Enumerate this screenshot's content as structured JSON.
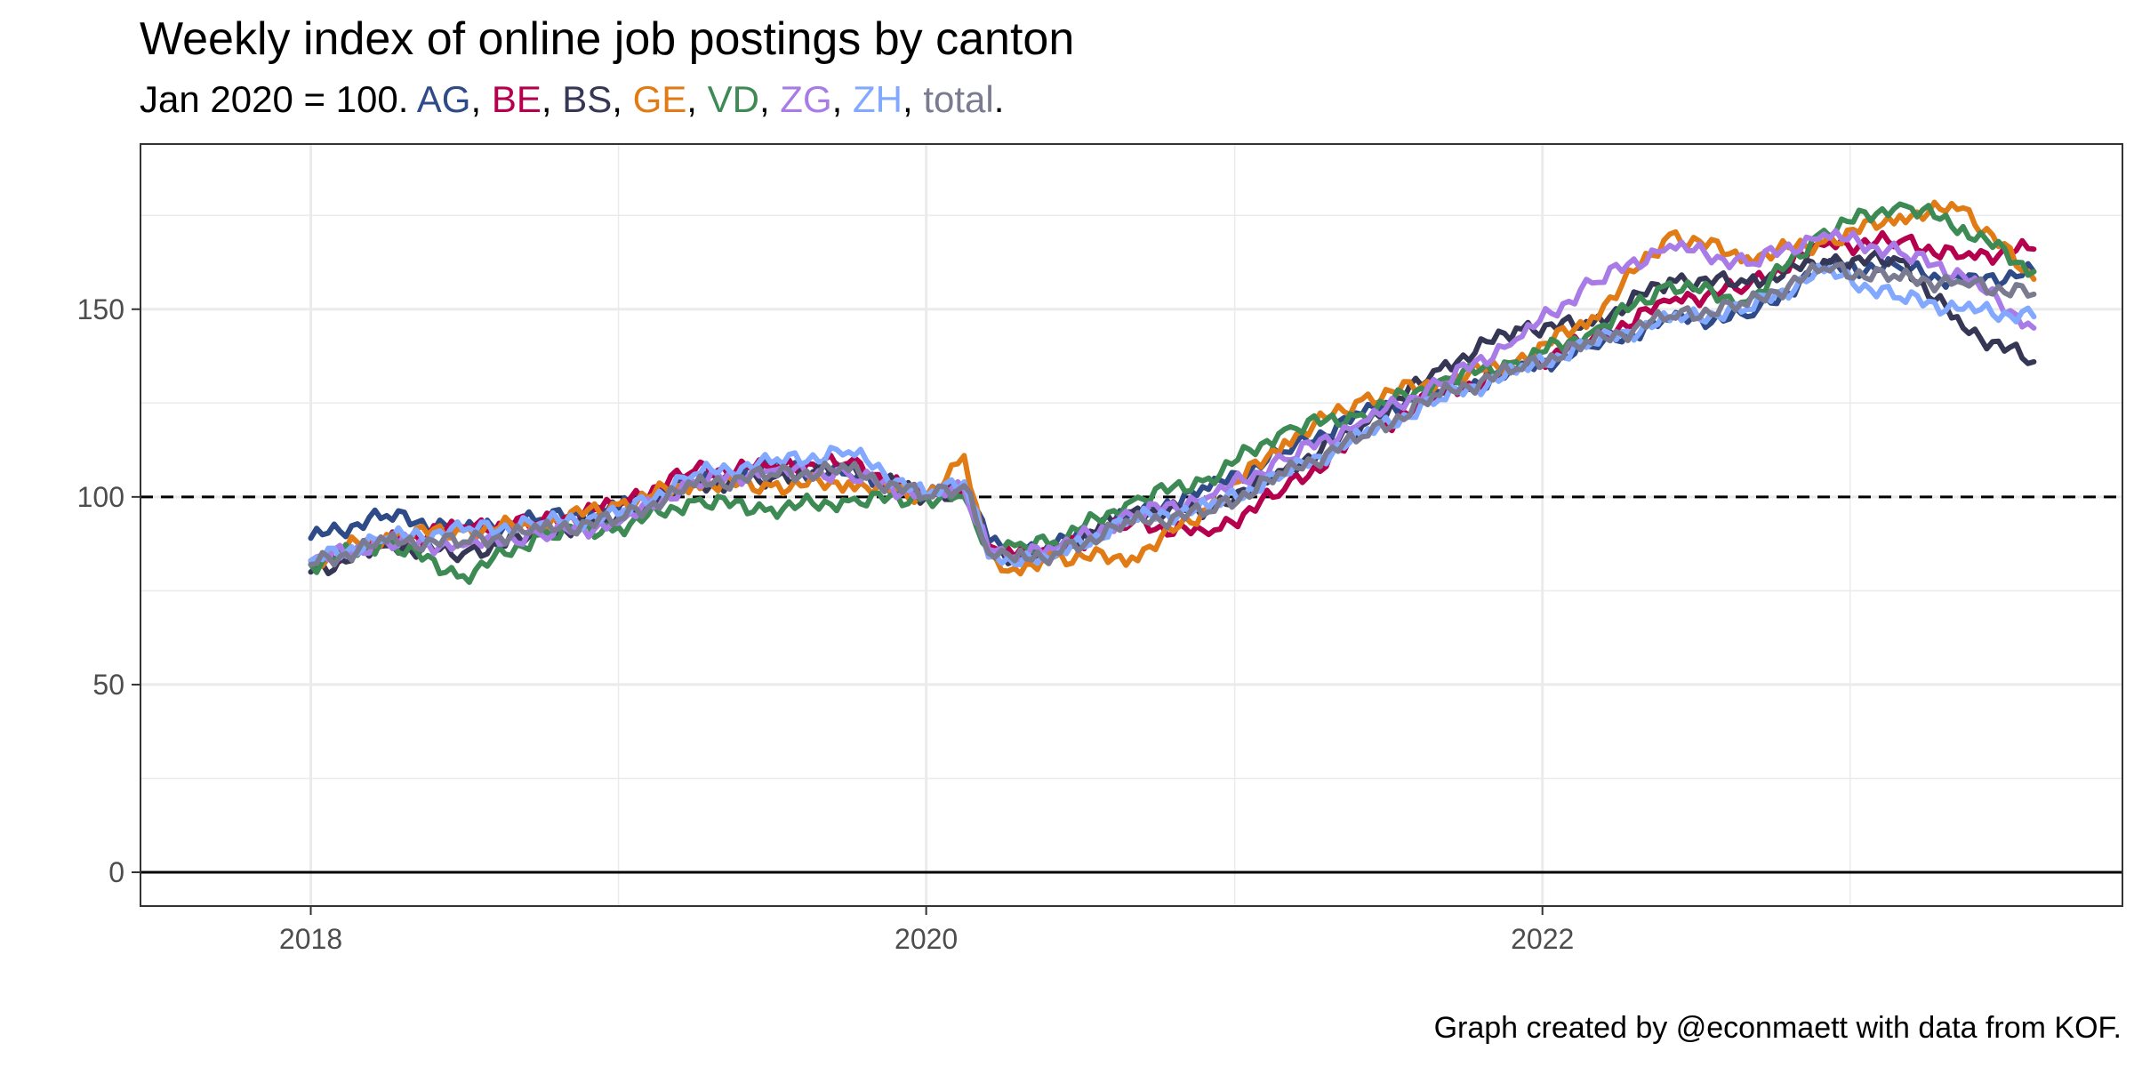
{
  "title": "Weekly index of online job postings by canton",
  "subtitle": {
    "prefix": "Jan 2020 = 100. ",
    "items": [
      {
        "label": "AG",
        "color": "#2E4A87"
      },
      {
        "label": "BE",
        "color": "#B5004E"
      },
      {
        "label": "BS",
        "color": "#363755"
      },
      {
        "label": "GE",
        "color": "#E07B16"
      },
      {
        "label": "VD",
        "color": "#3E8A54"
      },
      {
        "label": "ZG",
        "color": "#A87BE6"
      },
      {
        "label": "ZH",
        "color": "#82A8FF"
      },
      {
        "label": "total",
        "color": "#7A7A90"
      }
    ],
    "separator": ", ",
    "suffix": "."
  },
  "caption": "Graph created by @econmaett with data from KOF.",
  "chart_data": {
    "type": "line",
    "title": "Weekly index of online job postings by canton",
    "subtitle": "Jan 2020 = 100. AG, BE, BS, GE, VD, ZG, ZH, total.",
    "xlabel": "",
    "ylabel": "",
    "xlim": [
      "2017-06-13",
      "2023-11-20"
    ],
    "ylim": [
      -9,
      194
    ],
    "x_ticks": [
      "2018",
      "2020",
      "2022"
    ],
    "y_ticks": [
      0,
      50,
      100,
      150
    ],
    "grid": true,
    "reference_lines": [
      {
        "y": 100,
        "style": "dashed"
      },
      {
        "y": 0,
        "style": "solid"
      }
    ],
    "legend": "in subtitle",
    "x": [
      "2018-01-01",
      "2018-04-01",
      "2018-07-01",
      "2018-10-01",
      "2019-01-01",
      "2019-04-01",
      "2019-07-01",
      "2019-10-01",
      "2020-01-01",
      "2020-02-15",
      "2020-03-15",
      "2020-04-15",
      "2020-06-01",
      "2020-09-01",
      "2020-12-01",
      "2021-03-01",
      "2021-06-01",
      "2021-09-01",
      "2021-12-01",
      "2022-03-01",
      "2022-06-01",
      "2022-09-01",
      "2022-12-01",
      "2023-03-01",
      "2023-05-15",
      "2023-08-07"
    ],
    "series": [
      {
        "name": "AG",
        "color": "#2E4A87",
        "values": [
          89,
          95,
          91,
          94,
          97,
          104,
          108,
          106,
          100,
          103,
          88,
          84,
          87,
          95,
          102,
          112,
          122,
          128,
          133,
          140,
          147,
          148,
          161,
          161,
          157,
          160
        ]
      },
      {
        "name": "BE",
        "color": "#B5004E",
        "values": [
          83,
          88,
          92,
          93,
          98,
          107,
          108,
          109,
          100,
          103,
          87,
          84,
          86,
          93,
          90,
          102,
          116,
          127,
          134,
          142,
          152,
          156,
          167,
          168,
          164,
          166
        ]
      },
      {
        "name": "BS",
        "color": "#363755",
        "values": [
          80,
          87,
          85,
          90,
          95,
          103,
          105,
          108,
          100,
          102,
          86,
          83,
          86,
          96,
          97,
          107,
          119,
          134,
          145,
          146,
          158,
          157,
          163,
          163,
          145,
          136
        ]
      },
      {
        "name": "GE",
        "color": "#E07B16",
        "values": [
          83,
          90,
          91,
          93,
          98,
          104,
          103,
          104,
          100,
          111,
          84,
          81,
          84,
          84,
          97,
          115,
          126,
          131,
          136,
          148,
          170,
          164,
          168,
          175,
          177,
          158
        ]
      },
      {
        "name": "VD",
        "color": "#3E8A54",
        "values": [
          82,
          88,
          79,
          90,
          92,
          99,
          97,
          99,
          100,
          100,
          86,
          87,
          88,
          99,
          105,
          118,
          122,
          131,
          136,
          144,
          157,
          152,
          171,
          178,
          172,
          160
        ]
      },
      {
        "name": "ZG",
        "color": "#A87BE6",
        "values": [
          83,
          88,
          87,
          90,
          93,
          104,
          107,
          106,
          100,
          102,
          86,
          84,
          86,
          95,
          100,
          110,
          120,
          130,
          142,
          157,
          167,
          162,
          170,
          165,
          159,
          145
        ]
      },
      {
        "name": "ZH",
        "color": "#82A8FF",
        "values": [
          83,
          89,
          91,
          93,
          95,
          106,
          109,
          112,
          100,
          104,
          84,
          82,
          84,
          94,
          97,
          106,
          116,
          126,
          133,
          141,
          147,
          150,
          160,
          153,
          150,
          148
        ]
      },
      {
        "name": "total",
        "color": "#7A7A90",
        "values": [
          82,
          88,
          88,
          91,
          94,
          103,
          106,
          107,
          100,
          103,
          85,
          83,
          85,
          93,
          96,
          106,
          116,
          127,
          134,
          141,
          148,
          151,
          161,
          158,
          157,
          154
        ]
      }
    ]
  }
}
